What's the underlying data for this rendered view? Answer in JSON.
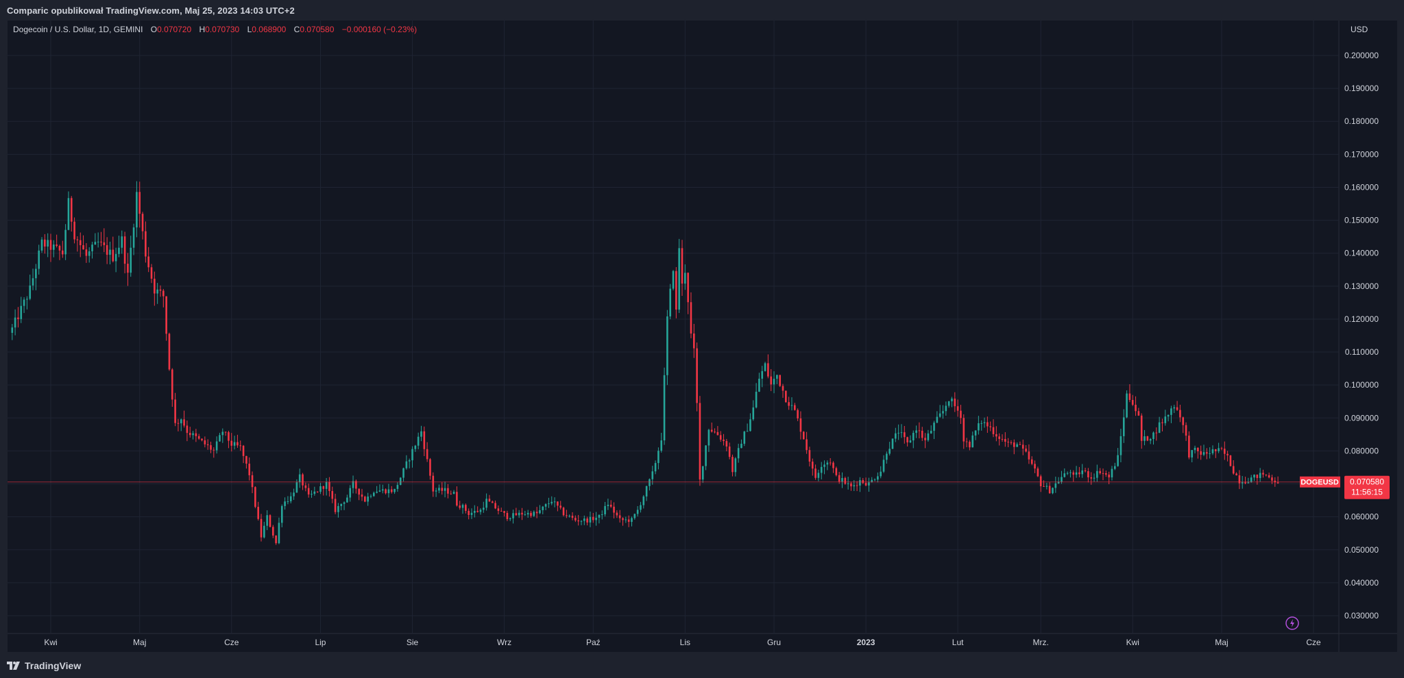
{
  "header": {
    "publisher": "Comparic opublikował TradingView.com, Maj 25, 2023 14:03 UTC+2"
  },
  "legend": {
    "symbol": "Dogecoin / U.S. Dollar, 1D, GEMINI",
    "o_label": "O",
    "o_value": "0.070720",
    "h_label": "H",
    "h_value": "0.070730",
    "l_label": "L",
    "l_value": "0.068900",
    "c_label": "C",
    "c_value": "0.070580",
    "change": "−0.000160 (−0.23%)"
  },
  "currency": "USD",
  "price_tag": {
    "ticker": "DOGEUSD",
    "price": "0.070580",
    "countdown": "11:56:15"
  },
  "footer": {
    "brand": "TradingView"
  },
  "colors": {
    "up": "#26a69a",
    "down": "#f23645",
    "background": "#131722",
    "frame": "#1e222d",
    "grid": "#1f2433",
    "text": "#d1d4dc",
    "price_line": "#f23645",
    "lightning": "#b24fdc"
  },
  "icons": {
    "lightning": "lightning-bolt-icon",
    "logo": "tradingview-logo-icon"
  },
  "chart_data": {
    "type": "candlestick",
    "title": "Dogecoin / U.S. Dollar, 1D, GEMINI",
    "ylim": [
      0.025,
      0.205
    ],
    "y_ticks": [
      0.03,
      0.04,
      0.05,
      0.06,
      0.07,
      0.08,
      0.09,
      0.1,
      0.11,
      0.12,
      0.13,
      0.14,
      0.15,
      0.16,
      0.17,
      0.18,
      0.19,
      0.2
    ],
    "y_tick_labels": [
      "0.030000",
      "0.040000",
      "0.050000",
      "0.060000",
      "0.070000",
      "0.080000",
      "0.090000",
      "0.100000",
      "0.110000",
      "0.120000",
      "0.130000",
      "0.140000",
      "0.150000",
      "0.160000",
      "0.170000",
      "0.180000",
      "0.190000",
      "0.200000"
    ],
    "x_ticks": [
      {
        "label": "Kwi",
        "day": 13,
        "bold": false
      },
      {
        "label": "Maj",
        "day": 43,
        "bold": false
      },
      {
        "label": "Cze",
        "day": 74,
        "bold": false
      },
      {
        "label": "Lip",
        "day": 104,
        "bold": false
      },
      {
        "label": "Sie",
        "day": 135,
        "bold": false
      },
      {
        "label": "Wrz",
        "day": 166,
        "bold": false
      },
      {
        "label": "Paź",
        "day": 196,
        "bold": false
      },
      {
        "label": "Lis",
        "day": 227,
        "bold": false
      },
      {
        "label": "Gru",
        "day": 257,
        "bold": false
      },
      {
        "label": "2023",
        "day": 288,
        "bold": true
      },
      {
        "label": "Lut",
        "day": 319,
        "bold": false
      },
      {
        "label": "Mrz.",
        "day": 347,
        "bold": false
      },
      {
        "label": "Kwi",
        "day": 378,
        "bold": false
      },
      {
        "label": "Maj",
        "day": 408,
        "bold": false
      },
      {
        "label": "Cze",
        "day": 439,
        "bold": false
      }
    ],
    "last_close": 0.07058,
    "last_day": 431,
    "series_anchors": {
      "name": "DOGEUSD",
      "day": [
        0,
        6,
        10,
        13,
        17,
        19,
        21,
        25,
        29,
        34,
        37,
        39,
        42,
        45,
        48,
        51,
        53,
        55,
        57,
        59,
        62,
        65,
        68,
        71,
        74,
        77,
        80,
        84,
        86,
        89,
        91,
        94,
        97,
        100,
        103,
        106,
        109,
        113,
        115,
        119,
        122,
        126,
        129,
        131,
        134,
        138,
        142,
        146,
        149,
        150,
        152,
        154,
        158,
        160,
        164,
        167,
        172,
        177,
        182,
        186,
        190,
        194,
        198,
        201,
        205,
        209,
        211,
        216,
        219,
        221,
        223,
        224,
        225,
        226,
        227,
        228,
        229,
        230,
        231,
        232,
        235,
        238,
        241,
        243,
        246,
        248,
        250,
        252,
        254,
        256,
        258,
        261,
        264,
        267,
        270,
        271,
        273,
        276,
        278,
        280,
        283,
        286,
        289,
        293,
        295,
        299,
        302,
        305,
        308,
        311,
        314,
        316,
        320,
        321,
        323,
        325,
        327,
        330,
        332,
        336,
        339,
        342,
        345,
        347,
        350,
        354,
        357,
        358,
        361,
        364,
        367,
        370,
        373,
        376,
        378,
        380,
        381,
        383,
        385,
        387,
        389,
        392,
        394,
        396,
        397,
        399,
        402,
        405,
        408,
        410,
        412,
        414,
        416,
        419,
        422,
        426,
        428,
        431
      ],
      "close": [
        0.117,
        0.129,
        0.143,
        0.142,
        0.14,
        0.155,
        0.146,
        0.139,
        0.143,
        0.139,
        0.144,
        0.133,
        0.158,
        0.14,
        0.129,
        0.127,
        0.105,
        0.088,
        0.09,
        0.086,
        0.084,
        0.082,
        0.08,
        0.086,
        0.082,
        0.081,
        0.073,
        0.054,
        0.06,
        0.052,
        0.064,
        0.066,
        0.072,
        0.066,
        0.068,
        0.07,
        0.062,
        0.066,
        0.07,
        0.065,
        0.068,
        0.068,
        0.068,
        0.072,
        0.078,
        0.086,
        0.068,
        0.068,
        0.067,
        0.064,
        0.063,
        0.061,
        0.062,
        0.065,
        0.062,
        0.06,
        0.061,
        0.061,
        0.065,
        0.061,
        0.059,
        0.059,
        0.06,
        0.064,
        0.059,
        0.059,
        0.062,
        0.073,
        0.084,
        0.12,
        0.136,
        0.122,
        0.142,
        0.13,
        0.135,
        0.126,
        0.115,
        0.11,
        0.094,
        0.071,
        0.087,
        0.085,
        0.082,
        0.074,
        0.083,
        0.087,
        0.093,
        0.102,
        0.106,
        0.1,
        0.103,
        0.096,
        0.092,
        0.084,
        0.074,
        0.072,
        0.076,
        0.077,
        0.072,
        0.071,
        0.069,
        0.071,
        0.07,
        0.074,
        0.08,
        0.086,
        0.082,
        0.087,
        0.083,
        0.088,
        0.092,
        0.096,
        0.091,
        0.083,
        0.082,
        0.086,
        0.089,
        0.087,
        0.085,
        0.082,
        0.082,
        0.079,
        0.074,
        0.07,
        0.068,
        0.072,
        0.074,
        0.072,
        0.074,
        0.072,
        0.074,
        0.072,
        0.078,
        0.097,
        0.095,
        0.09,
        0.083,
        0.084,
        0.085,
        0.088,
        0.09,
        0.094,
        0.091,
        0.084,
        0.079,
        0.08,
        0.079,
        0.08,
        0.08,
        0.078,
        0.074,
        0.071,
        0.071,
        0.072,
        0.073,
        0.071,
        0.0706
      ]
    }
  }
}
